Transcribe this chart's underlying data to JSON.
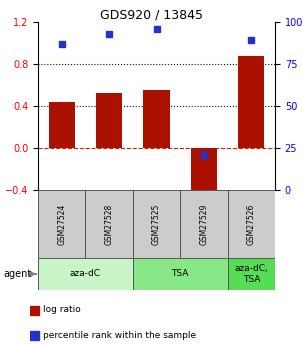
{
  "title": "GDS920 / 13845",
  "samples": [
    "GSM27524",
    "GSM27528",
    "GSM27525",
    "GSM27529",
    "GSM27526"
  ],
  "log_ratios": [
    0.44,
    0.52,
    0.55,
    -0.47,
    0.88
  ],
  "percentile_ranks": [
    87,
    93,
    96,
    21,
    89
  ],
  "agent_groups": [
    {
      "label": "aza-dC",
      "span": [
        0,
        2
      ],
      "color": "#c8f5c8"
    },
    {
      "label": "TSA",
      "span": [
        2,
        4
      ],
      "color": "#88e888"
    },
    {
      "label": "aza-dC,\nTSA",
      "span": [
        4,
        5
      ],
      "color": "#55dd55"
    }
  ],
  "bar_color": "#aa1100",
  "dot_color": "#2233cc",
  "ylim_left": [
    -0.4,
    1.2
  ],
  "ylim_right": [
    0,
    100
  ],
  "yticks_left": [
    -0.4,
    0.0,
    0.4,
    0.8,
    1.2
  ],
  "yticks_right": [
    0,
    25,
    50,
    75,
    100
  ],
  "hlines": [
    0.0,
    0.4,
    0.8
  ],
  "hline_styles": [
    "--",
    ":",
    ":"
  ],
  "hline_colors": [
    "#cc2200",
    "#111111",
    "#111111"
  ],
  "sample_box_color": "#cccccc",
  "legend_items": [
    {
      "color": "#aa1100",
      "label": "log ratio"
    },
    {
      "color": "#2233cc",
      "label": "percentile rank within the sample"
    }
  ],
  "title_fontsize": 9,
  "tick_fontsize": 7,
  "sample_fontsize": 5.5,
  "agent_fontsize": 6.5,
  "legend_fontsize": 6.5
}
